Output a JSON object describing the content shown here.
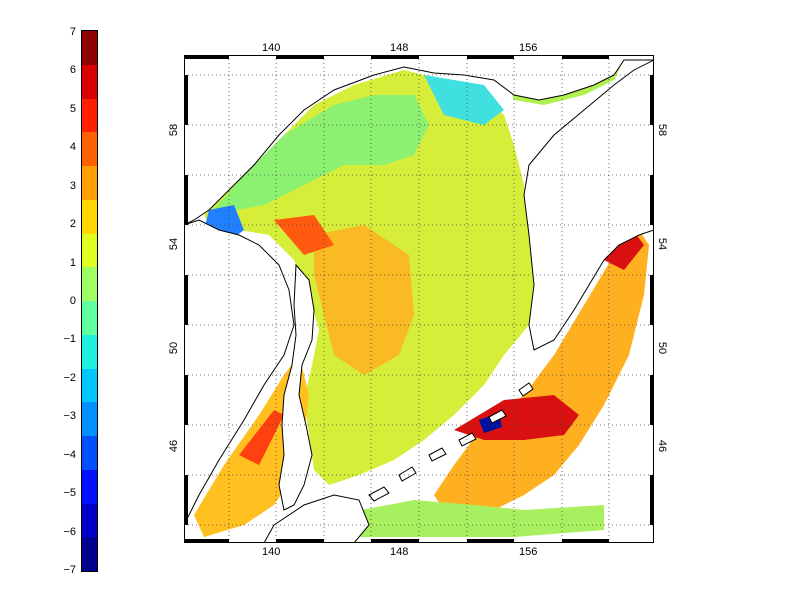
{
  "colorbar": {
    "labels": [
      "7",
      "6",
      "5",
      "4",
      "3",
      "2",
      "1",
      "0",
      "−1",
      "−2",
      "−3",
      "−4",
      "−5",
      "−6",
      "−7"
    ],
    "min": -7,
    "max": 7,
    "colors": [
      "#00008f",
      "#0000c8",
      "#0010ff",
      "#0050ff",
      "#0090ff",
      "#00c8ff",
      "#20f0e0",
      "#60ffa0",
      "#a0ff60",
      "#e0ff20",
      "#ffd800",
      "#ffa000",
      "#ff6000",
      "#ff2000",
      "#d80000",
      "#8f0000"
    ]
  },
  "map": {
    "lon_ticks_top": [
      "140",
      "148",
      "156"
    ],
    "lon_ticks_bottom": [
      "140",
      "148",
      "156"
    ],
    "lat_ticks_left": [
      "58",
      "54",
      "50",
      "46"
    ],
    "lat_ticks_right": [
      "58",
      "54",
      "50",
      "46"
    ],
    "land_color": "#ffffff",
    "grid": true
  }
}
